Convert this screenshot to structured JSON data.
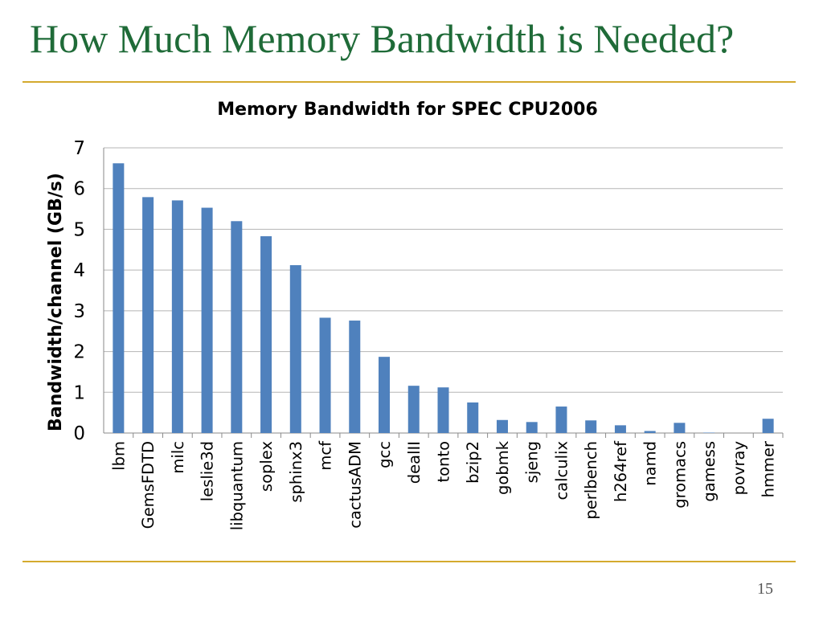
{
  "slide": {
    "title": "How Much Memory Bandwidth is Needed?",
    "page_number": "15",
    "rule_color": "#d4aa2e",
    "title_color": "#1f6b38"
  },
  "chart_data": {
    "type": "bar",
    "title": "Memory Bandwidth for SPEC CPU2006",
    "xlabel": "",
    "ylabel": "Bandwidth/channel (GB/s)",
    "ylim": [
      0,
      7
    ],
    "yticks": [
      0,
      1,
      2,
      3,
      4,
      5,
      6,
      7
    ],
    "grid": true,
    "legend": "none",
    "bar_color": "#4f81bd",
    "categories": [
      "lbm",
      "GemsFDTD",
      "milc",
      "leslie3d",
      "libquantum",
      "soplex",
      "sphinx3",
      "mcf",
      "cactusADM",
      "gcc",
      "dealII",
      "tonto",
      "bzip2",
      "gobmk",
      "sjeng",
      "calculix",
      "perlbench",
      "h264ref",
      "namd",
      "gromacs",
      "gamess",
      "povray",
      "hmmer"
    ],
    "values": [
      6.62,
      5.79,
      5.71,
      5.53,
      5.2,
      4.83,
      4.12,
      2.83,
      2.76,
      1.87,
      1.16,
      1.12,
      0.75,
      0.32,
      0.27,
      0.65,
      0.31,
      0.19,
      0.05,
      0.25,
      0.01,
      0.0,
      0.35
    ]
  }
}
